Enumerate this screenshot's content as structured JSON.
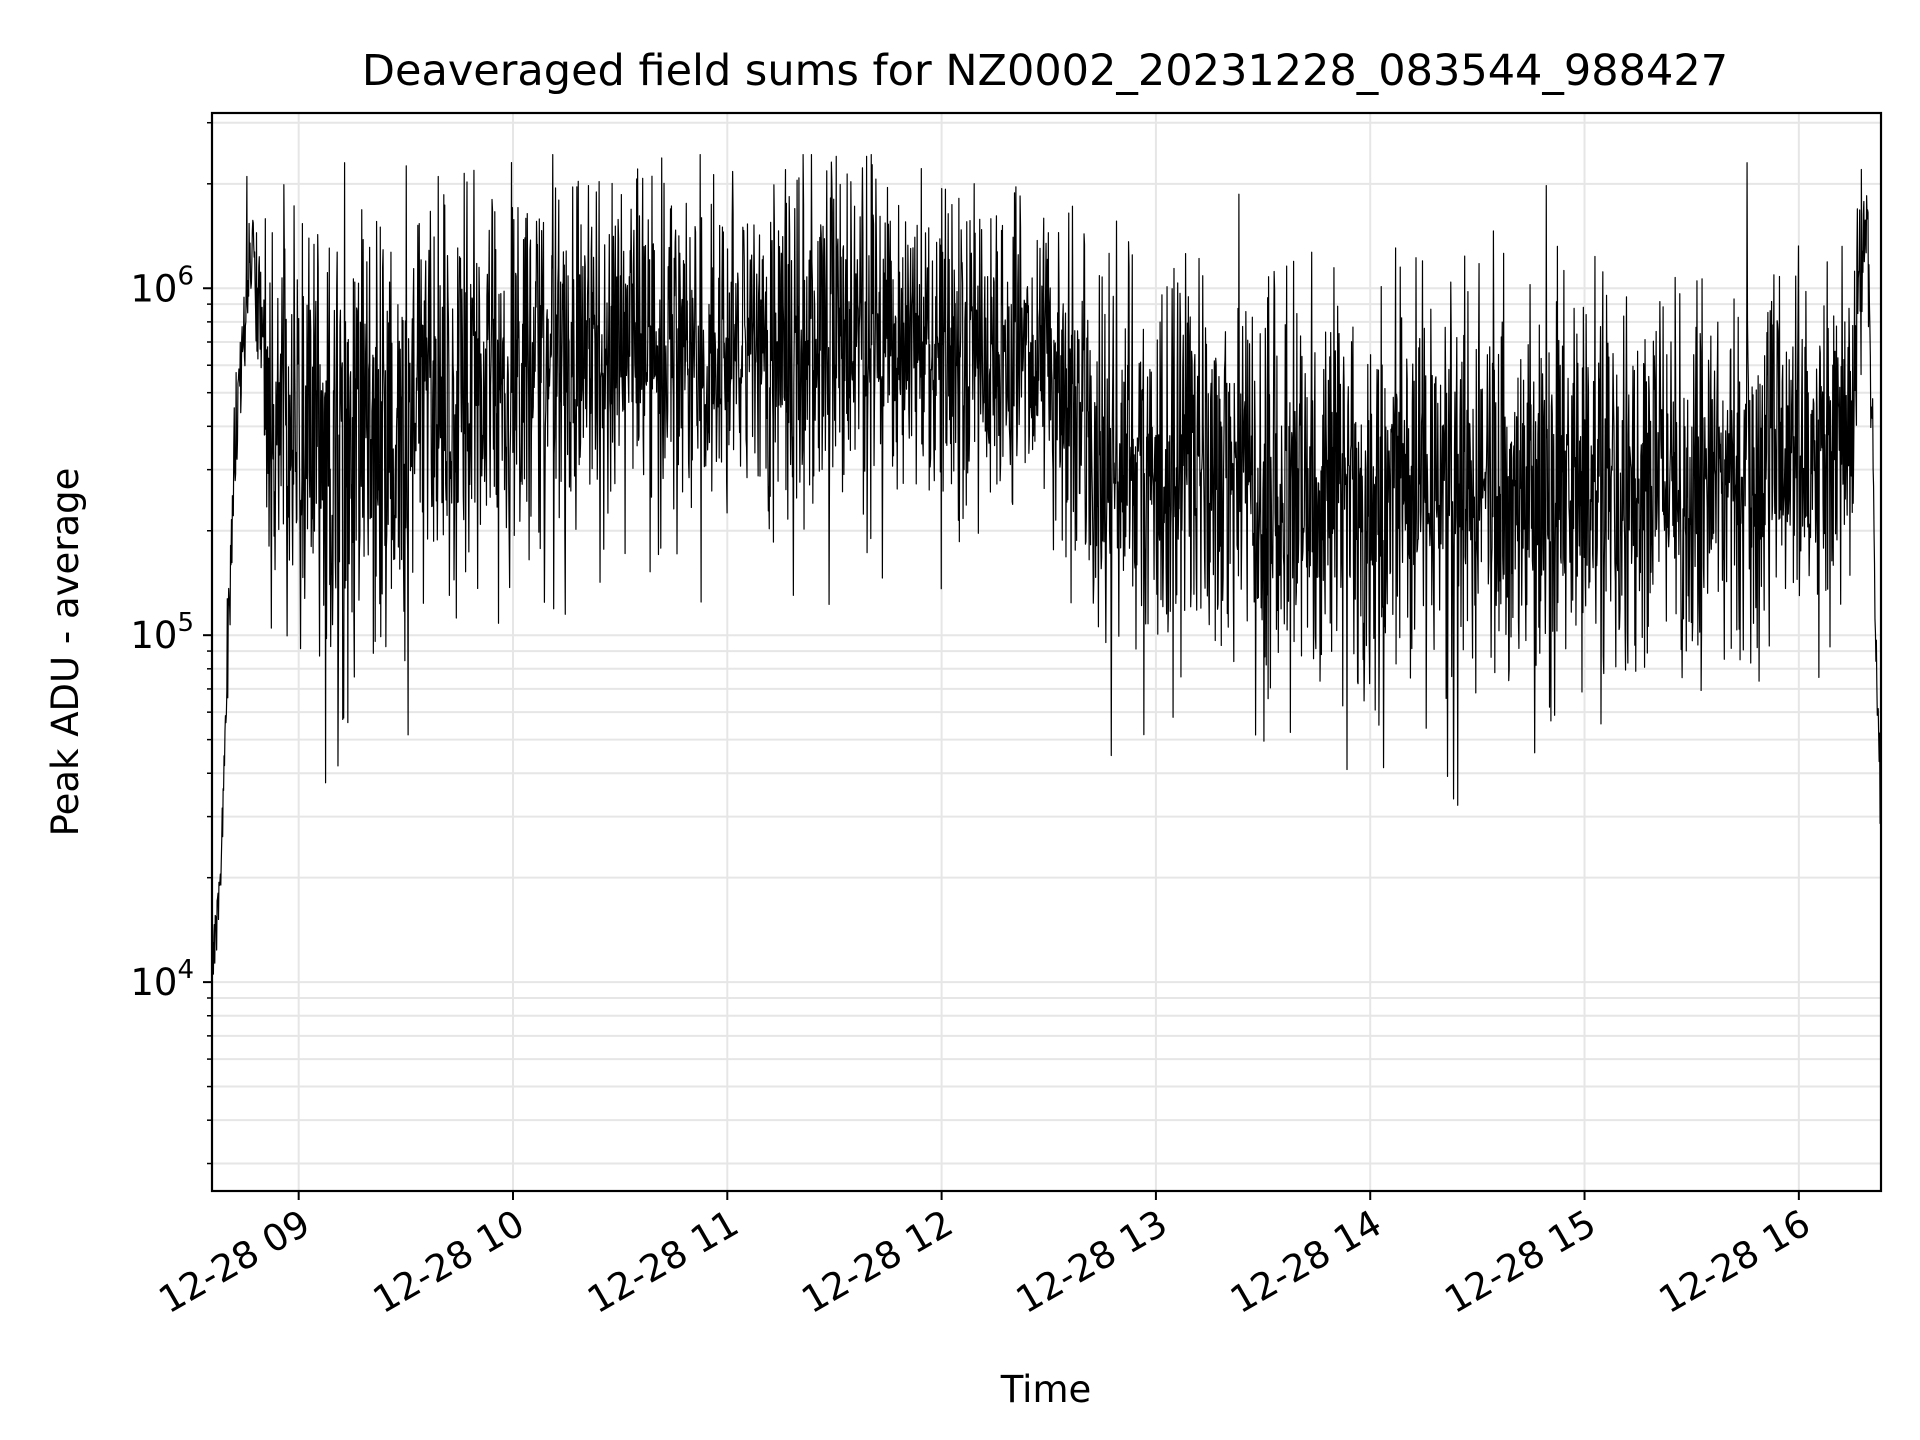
{
  "chart_data": {
    "type": "line",
    "title": "Deaveraged field sums for NZ0002_20231228_083544_988427",
    "xlabel": "Time",
    "ylabel": "Peak ADU - average",
    "x_axis": {
      "kind": "time",
      "range": [
        "2023-12-28T08:35:44",
        "2023-12-28T16:23:00"
      ],
      "ticks": [
        {
          "value": "2023-12-28T09:00",
          "label": "12-28 09"
        },
        {
          "value": "2023-12-28T10:00",
          "label": "12-28 10"
        },
        {
          "value": "2023-12-28T11:00",
          "label": "12-28 11"
        },
        {
          "value": "2023-12-28T12:00",
          "label": "12-28 12"
        },
        {
          "value": "2023-12-28T13:00",
          "label": "12-28 13"
        },
        {
          "value": "2023-12-28T14:00",
          "label": "12-28 14"
        },
        {
          "value": "2023-12-28T15:00",
          "label": "12-28 15"
        },
        {
          "value": "2023-12-28T16:00",
          "label": "12-28 16"
        }
      ]
    },
    "y_axis": {
      "scale": "log",
      "range": [
        2500,
        3200000
      ],
      "ticks": [
        {
          "value": 10000,
          "base": "10",
          "exp": "4"
        },
        {
          "value": 100000,
          "base": "10",
          "exp": "5"
        },
        {
          "value": 1000000,
          "base": "10",
          "exp": "6"
        }
      ]
    },
    "grid": true,
    "line_color": "#000000",
    "grid_color": "#e6e6e6",
    "series": [
      {
        "sampling": "dense noisy signal approximated by its local typical level and spread; long-run envelope read from the figure",
        "envelope": [
          {
            "t": "2023-12-28T08:35:44",
            "median": 12000,
            "spread_decades": 0.05
          },
          {
            "t": "2023-12-28T08:38:00",
            "median": 18000,
            "spread_decades": 0.05
          },
          {
            "t": "2023-12-28T08:42:00",
            "median": 350000,
            "spread_decades": 0.15
          },
          {
            "t": "2023-12-28T08:47:00",
            "median": 1500000,
            "spread_decades": 0.1
          },
          {
            "t": "2023-12-28T08:52:00",
            "median": 450000,
            "spread_decades": 0.35
          },
          {
            "t": "2023-12-28T09:15:00",
            "median": 350000,
            "spread_decades": 0.5
          },
          {
            "t": "2023-12-28T09:45:00",
            "median": 550000,
            "spread_decades": 0.4
          },
          {
            "t": "2023-12-28T10:30:00",
            "median": 650000,
            "spread_decades": 0.35
          },
          {
            "t": "2023-12-28T11:30:00",
            "median": 750000,
            "spread_decades": 0.35
          },
          {
            "t": "2023-12-28T12:30:00",
            "median": 600000,
            "spread_decades": 0.3
          },
          {
            "t": "2023-12-28T12:45:00",
            "median": 300000,
            "spread_decades": 0.4
          },
          {
            "t": "2023-12-28T13:30:00",
            "median": 280000,
            "spread_decades": 0.4
          },
          {
            "t": "2023-12-28T14:30:00",
            "median": 250000,
            "spread_decades": 0.4
          },
          {
            "t": "2023-12-28T15:30:00",
            "median": 280000,
            "spread_decades": 0.35
          },
          {
            "t": "2023-12-28T16:15:00",
            "median": 400000,
            "spread_decades": 0.35
          },
          {
            "t": "2023-12-28T16:19:00",
            "median": 1800000,
            "spread_decades": 0.1
          },
          {
            "t": "2023-12-28T16:23:00",
            "median": 25000,
            "spread_decades": 0.1
          }
        ],
        "notable_points": [
          {
            "t": "2023-12-28T08:45:30",
            "y": 2100000
          },
          {
            "t": "2023-12-28T09:11:00",
            "y": 42000
          },
          {
            "t": "2023-12-28T11:30:30",
            "y": 2400000
          },
          {
            "t": "2023-12-28T11:39:00",
            "y": 2400000
          },
          {
            "t": "2023-12-28T12:47:30",
            "y": 45000
          },
          {
            "t": "2023-12-28T13:53:30",
            "y": 41000
          },
          {
            "t": "2023-12-28T15:45:30",
            "y": 2300000
          },
          {
            "t": "2023-12-28T16:17:30",
            "y": 2200000
          }
        ]
      }
    ]
  }
}
